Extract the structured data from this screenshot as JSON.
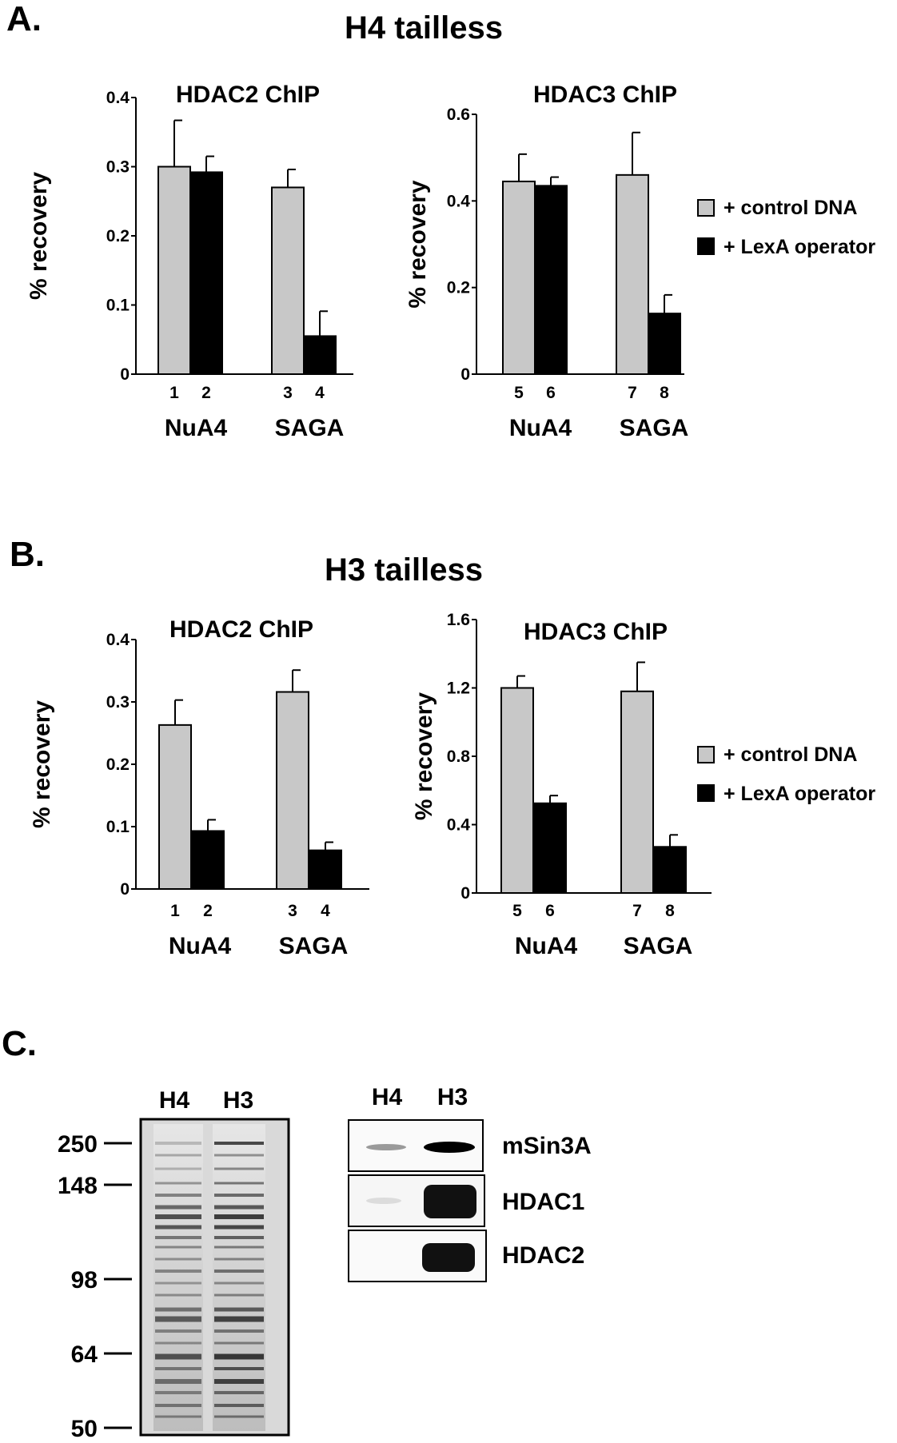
{
  "panels": {
    "A": {
      "letter": "A.",
      "title": "H4 tailless",
      "legend": {
        "control_label": "+ control DNA",
        "lexa_label": "+ LexA operator"
      }
    },
    "B": {
      "letter": "B.",
      "title": "H3 tailless",
      "legend": {
        "control_label": "+ control DNA",
        "lexa_label": "+ LexA operator"
      }
    },
    "C": {
      "letter": "C.",
      "gel": {
        "lanes": [
          "H4",
          "H3"
        ],
        "markers": [
          "250",
          "148",
          "98",
          "64",
          "50"
        ]
      },
      "western": {
        "lanes": [
          "H4",
          "H3"
        ],
        "proteins": [
          "mSin3A",
          "HDAC1",
          "HDAC2"
        ]
      }
    }
  },
  "colors": {
    "control": "#c8c8c8",
    "lexa": "#000000"
  },
  "chart_data": [
    {
      "type": "bar",
      "panel": "A",
      "title": "HDAC2 ChIP",
      "ylabel": "% recovery",
      "ylim": [
        0,
        0.4
      ],
      "yticks": [
        "0",
        "0.1",
        "0.2",
        "0.3",
        "0.4"
      ],
      "groups": [
        "NuA4",
        "SAGA"
      ],
      "bar_numbers": [
        "1",
        "2",
        "3",
        "4"
      ],
      "series": [
        {
          "name": "+ control DNA",
          "values": [
            0.3,
            0.27
          ],
          "errors": [
            0.067,
            0.026
          ]
        },
        {
          "name": "+ LexA operator",
          "values": [
            0.292,
            0.055
          ],
          "errors": [
            0.023,
            0.036
          ]
        }
      ]
    },
    {
      "type": "bar",
      "panel": "A",
      "title": "HDAC3 ChIP",
      "ylabel": "% recovery",
      "ylim": [
        0,
        0.6
      ],
      "yticks": [
        "0",
        "0.2",
        "0.4",
        "0.6"
      ],
      "groups": [
        "NuA4",
        "SAGA"
      ],
      "bar_numbers": [
        "5",
        "6",
        "7",
        "8"
      ],
      "series": [
        {
          "name": "+ control DNA",
          "values": [
            0.445,
            0.46
          ],
          "errors": [
            0.063,
            0.098
          ]
        },
        {
          "name": "+ LexA operator",
          "values": [
            0.435,
            0.14
          ],
          "errors": [
            0.02,
            0.043
          ]
        }
      ]
    },
    {
      "type": "bar",
      "panel": "B",
      "title": "HDAC2 ChIP",
      "ylabel": "% recovery",
      "ylim": [
        0,
        0.4
      ],
      "yticks": [
        "0",
        "0.1",
        "0.2",
        "0.3",
        "0.4"
      ],
      "groups": [
        "NuA4",
        "SAGA"
      ],
      "bar_numbers": [
        "1",
        "2",
        "3",
        "4"
      ],
      "series": [
        {
          "name": "+ control DNA",
          "values": [
            0.263,
            0.316
          ],
          "errors": [
            0.04,
            0.035
          ]
        },
        {
          "name": "+ LexA operator",
          "values": [
            0.093,
            0.062
          ],
          "errors": [
            0.018,
            0.013
          ]
        }
      ]
    },
    {
      "type": "bar",
      "panel": "B",
      "title": "HDAC3 ChIP",
      "ylabel": "% recovery",
      "ylim": [
        0,
        1.6
      ],
      "yticks": [
        "0",
        "0.4",
        "0.8",
        "1.2",
        "1.6"
      ],
      "groups": [
        "NuA4",
        "SAGA"
      ],
      "bar_numbers": [
        "5",
        "6",
        "7",
        "8"
      ],
      "series": [
        {
          "name": "+ control DNA",
          "values": [
            1.2,
            1.18
          ],
          "errors": [
            0.07,
            0.17
          ]
        },
        {
          "name": "+ LexA operator",
          "values": [
            0.525,
            0.27
          ],
          "errors": [
            0.045,
            0.07
          ]
        }
      ]
    }
  ]
}
